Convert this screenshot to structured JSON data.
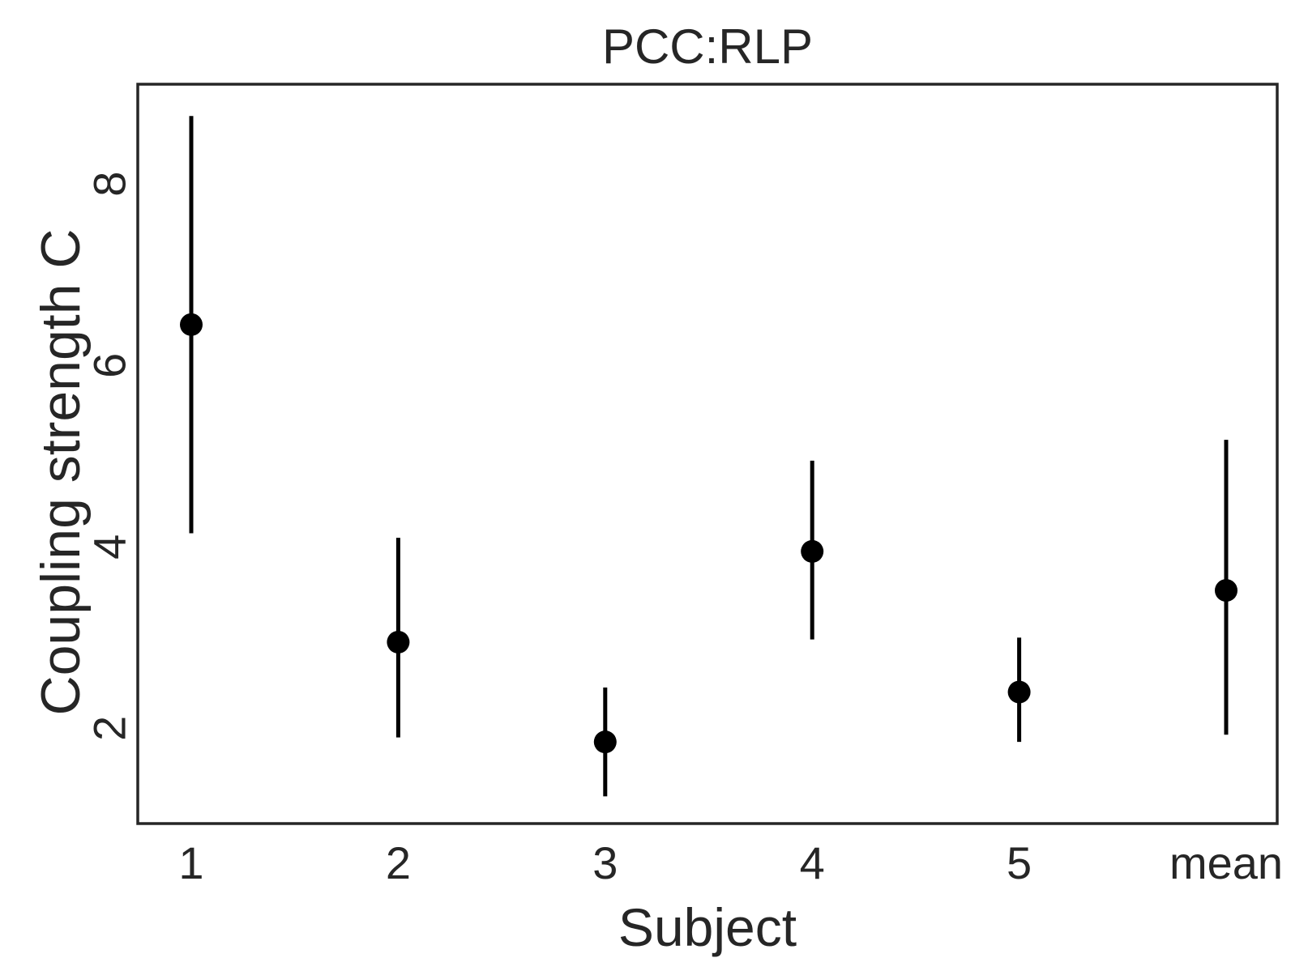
{
  "chart_data": {
    "type": "scatter",
    "title": "PCC:RLP",
    "xlabel": "Subject",
    "ylabel": "Coupling strength C",
    "categories": [
      "1",
      "2",
      "3",
      "4",
      "5",
      "mean"
    ],
    "series": [
      {
        "values": [
          6.45,
          2.95,
          1.85,
          3.95,
          2.4,
          3.52
        ],
        "err_low": [
          4.15,
          1.9,
          1.25,
          2.98,
          1.85,
          1.93
        ],
        "err_high": [
          8.75,
          4.1,
          2.45,
          4.95,
          3.0,
          5.18
        ]
      }
    ],
    "ylim": [
      0.95,
      9.1
    ],
    "yticks": [
      2,
      4,
      6,
      8
    ],
    "grid": false,
    "colors": {
      "marker": "#000000",
      "frame": "#262626",
      "text": "#262626"
    }
  }
}
